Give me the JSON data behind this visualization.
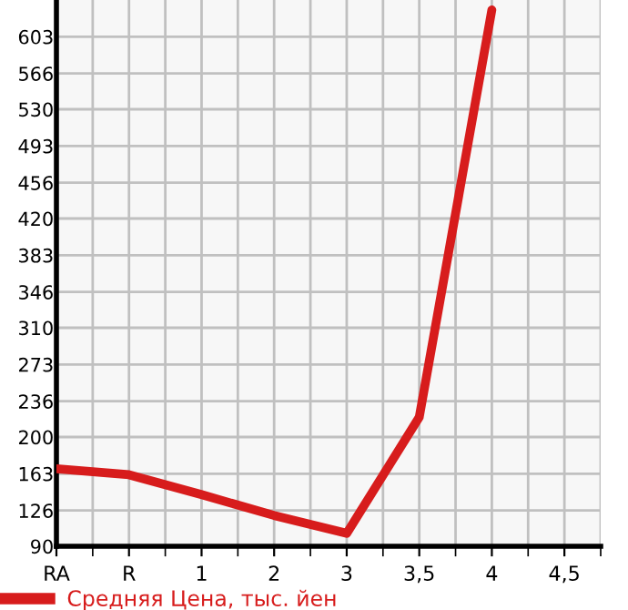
{
  "chart_data": {
    "type": "line",
    "categories": [
      "RA",
      "R",
      "1",
      "2",
      "3",
      "3,5",
      "4",
      "4,5"
    ],
    "series": [
      {
        "name": "Средняя Цена, тыс. йен",
        "color": "#d71c1c",
        "values": [
          168,
          162,
          142,
          121,
          103,
          220,
          630,
          null
        ]
      }
    ],
    "ylim": [
      90,
      640
    ],
    "yticks": [
      90,
      126,
      163,
      200,
      236,
      273,
      310,
      346,
      383,
      420,
      456,
      493,
      530,
      566,
      603
    ],
    "grid": true,
    "legend": "bottom left",
    "marker": "none",
    "line_style": "solid"
  }
}
